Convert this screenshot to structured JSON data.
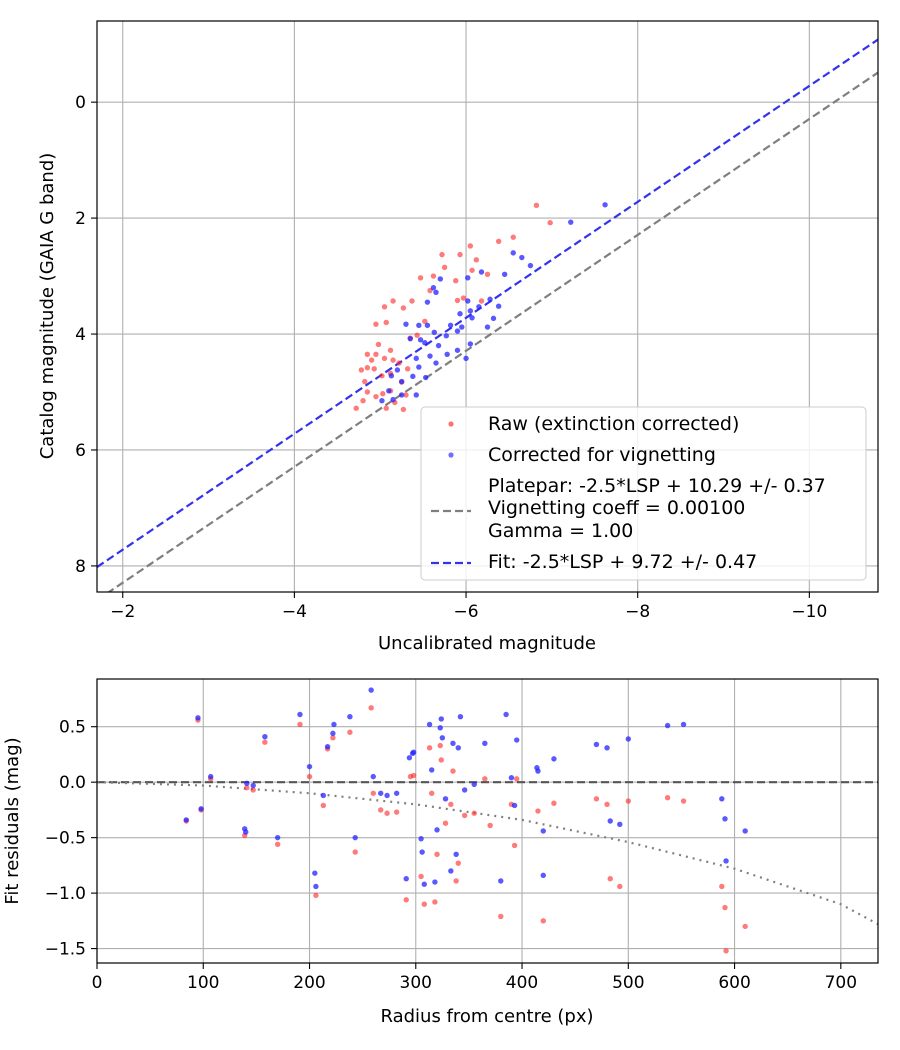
{
  "chart_data": [
    {
      "type": "scatter",
      "xlabel": "Uncalibrated magnitude",
      "ylabel": "Catalog magnitude (GAIA G band)",
      "xlim": [
        -1.7,
        -10.8
      ],
      "ylim": [
        8.45,
        -1.4
      ],
      "xticks": [
        -2,
        -4,
        -6,
        -8,
        -10
      ],
      "xtick_labels": [
        "−2",
        "−4",
        "−6",
        "−8",
        "−10"
      ],
      "yticks": [
        0,
        2,
        4,
        6,
        8
      ],
      "ytick_labels": [
        "0",
        "2",
        "4",
        "6",
        "8"
      ],
      "grid": true,
      "legend_position": "lower-right",
      "legend": {
        "raw": "Raw (extinction corrected)",
        "corrected": "Corrected for vignetting",
        "platepar": [
          "Platepar: -2.5*LSP + 10.29 +/- 0.37",
          "Vignetting coeff = 0.00100",
          "Gamma = 1.00"
        ],
        "fit": "Fit: -2.5*LSP + 9.72 +/- 0.47"
      },
      "lines": [
        {
          "name": "platepar",
          "slope": 1.0,
          "intercept": 10.29,
          "color": "#7f7f7f",
          "style": "dashed"
        },
        {
          "name": "fit",
          "slope": 1.0,
          "intercept": 9.72,
          "color": "#3333ee",
          "style": "dashed"
        }
      ],
      "series": [
        {
          "name": "Raw (extinction corrected)",
          "color": "#ff2222",
          "points": [
            [
              -6.82,
              1.78
            ],
            [
              -6.98,
              2.08
            ],
            [
              -6.55,
              2.33
            ],
            [
              -6.38,
              2.4
            ],
            [
              -6.05,
              2.48
            ],
            [
              -5.72,
              2.63
            ],
            [
              -5.93,
              2.63
            ],
            [
              -6.12,
              2.72
            ],
            [
              -5.75,
              2.85
            ],
            [
              -6.07,
              2.9
            ],
            [
              -6.25,
              2.97
            ],
            [
              -5.62,
              3.0
            ],
            [
              -5.47,
              3.03
            ],
            [
              -5.88,
              3.08
            ],
            [
              -5.58,
              3.25
            ],
            [
              -5.97,
              3.38
            ],
            [
              -5.9,
              3.42
            ],
            [
              -6.18,
              3.43
            ],
            [
              -5.37,
              3.43
            ],
            [
              -5.15,
              3.43
            ],
            [
              -5.05,
              3.53
            ],
            [
              -5.27,
              3.55
            ],
            [
              -5.52,
              3.78
            ],
            [
              -5.07,
              3.8
            ],
            [
              -4.95,
              3.83
            ],
            [
              -5.43,
              4.02
            ],
            [
              -5.35,
              4.07
            ],
            [
              -4.98,
              4.18
            ],
            [
              -5.12,
              4.28
            ],
            [
              -4.85,
              4.35
            ],
            [
              -4.95,
              4.35
            ],
            [
              -5.05,
              4.42
            ],
            [
              -5.15,
              4.45
            ],
            [
              -4.9,
              4.45
            ],
            [
              -5.22,
              4.5
            ],
            [
              -4.85,
              4.58
            ],
            [
              -4.93,
              4.6
            ],
            [
              -5.32,
              4.6
            ],
            [
              -4.78,
              4.62
            ],
            [
              -5.12,
              4.68
            ],
            [
              -5.02,
              4.72
            ],
            [
              -4.82,
              4.82
            ],
            [
              -5.25,
              4.83
            ],
            [
              -5.12,
              4.98
            ],
            [
              -4.85,
              5.0
            ],
            [
              -5.03,
              5.03
            ],
            [
              -5.3,
              5.05
            ],
            [
              -4.95,
              5.08
            ],
            [
              -4.8,
              5.15
            ],
            [
              -5.17,
              5.18
            ],
            [
              -4.72,
              5.28
            ],
            [
              -5.07,
              5.28
            ],
            [
              -5.27,
              5.3
            ]
          ]
        },
        {
          "name": "Corrected for vignetting",
          "color": "#2222ff",
          "points": [
            [
              -7.62,
              1.77
            ],
            [
              -7.22,
              2.07
            ],
            [
              -6.55,
              2.6
            ],
            [
              -6.65,
              2.68
            ],
            [
              -6.75,
              2.82
            ],
            [
              -6.18,
              2.93
            ],
            [
              -6.45,
              2.97
            ],
            [
              -6.02,
              3.03
            ],
            [
              -5.7,
              3.05
            ],
            [
              -6.28,
              3.4
            ],
            [
              -6.02,
              3.43
            ],
            [
              -5.62,
              3.2
            ],
            [
              -5.65,
              3.28
            ],
            [
              -5.55,
              3.45
            ],
            [
              -6.38,
              3.52
            ],
            [
              -6.15,
              3.53
            ],
            [
              -6.05,
              3.6
            ],
            [
              -5.93,
              3.65
            ],
            [
              -6.07,
              3.72
            ],
            [
              -6.32,
              3.73
            ],
            [
              -6.25,
              3.88
            ],
            [
              -5.82,
              3.85
            ],
            [
              -5.95,
              3.88
            ],
            [
              -5.3,
              3.83
            ],
            [
              -5.45,
              3.85
            ],
            [
              -5.55,
              3.85
            ],
            [
              -5.9,
              3.95
            ],
            [
              -5.63,
              3.97
            ],
            [
              -5.77,
              4.03
            ],
            [
              -5.35,
              4.08
            ],
            [
              -5.47,
              4.1
            ],
            [
              -5.52,
              4.15
            ],
            [
              -6.05,
              4.17
            ],
            [
              -5.68,
              4.2
            ],
            [
              -5.9,
              4.28
            ],
            [
              -5.78,
              4.35
            ],
            [
              -5.58,
              4.38
            ],
            [
              -5.42,
              4.42
            ],
            [
              -6.0,
              4.42
            ],
            [
              -5.65,
              4.5
            ],
            [
              -5.45,
              4.57
            ],
            [
              -5.2,
              4.62
            ],
            [
              -5.13,
              4.72
            ],
            [
              -5.38,
              4.73
            ],
            [
              -5.53,
              4.75
            ],
            [
              -5.25,
              4.82
            ],
            [
              -5.1,
              4.98
            ],
            [
              -5.25,
              5.05
            ],
            [
              -5.42,
              5.05
            ],
            [
              -5.15,
              5.13
            ],
            [
              -5.02,
              5.15
            ]
          ]
        }
      ]
    },
    {
      "type": "scatter",
      "xlabel": "Radius from centre (px)",
      "ylabel": "Fit residuals (mag)",
      "xlim": [
        0,
        735
      ],
      "ylim": [
        -1.63,
        0.93
      ],
      "xticks": [
        0,
        100,
        200,
        300,
        400,
        500,
        600,
        700
      ],
      "xtick_labels": [
        "0",
        "100",
        "200",
        "300",
        "400",
        "500",
        "600",
        "700"
      ],
      "yticks": [
        0.5,
        0.0,
        -0.5,
        -1.0,
        -1.5
      ],
      "ytick_labels": [
        "0.5",
        "0.0",
        "−0.5",
        "−1.0",
        "−1.5"
      ],
      "grid": true,
      "lines": [
        {
          "name": "zero-line",
          "color": "#555555",
          "style": "dashed",
          "x": [
            0,
            735
          ],
          "y": [
            0,
            0
          ]
        },
        {
          "name": "vignetting-curve",
          "color": "#808080",
          "style": "dotted",
          "x": [
            0,
            100,
            200,
            300,
            400,
            500,
            600,
            700,
            735
          ],
          "y": [
            0.0,
            -0.03,
            -0.1,
            -0.2,
            -0.34,
            -0.54,
            -0.78,
            -1.1,
            -1.28
          ]
        }
      ],
      "series": [
        {
          "name": "Raw (extinction corrected)",
          "color": "#ff2222",
          "points": [
            [
              84,
              -0.35
            ],
            [
              95,
              0.56
            ],
            [
              98,
              -0.25
            ],
            [
              107,
              0.03
            ],
            [
              139,
              -0.48
            ],
            [
              141,
              -0.05
            ],
            [
              147,
              -0.07
            ],
            [
              158,
              0.36
            ],
            [
              170,
              -0.56
            ],
            [
              191,
              0.52
            ],
            [
              200,
              0.05
            ],
            [
              206,
              -1.02
            ],
            [
              213,
              -0.21
            ],
            [
              217,
              0.3
            ],
            [
              222,
              0.4
            ],
            [
              238,
              0.45
            ],
            [
              243,
              -0.63
            ],
            [
              258,
              0.67
            ],
            [
              260,
              -0.1
            ],
            [
              267,
              -0.25
            ],
            [
              273,
              -0.28
            ],
            [
              282,
              -0.27
            ],
            [
              291,
              -1.06
            ],
            [
              295,
              0.05
            ],
            [
              298,
              0.06
            ],
            [
              305,
              -0.85
            ],
            [
              308,
              -1.1
            ],
            [
              313,
              0.31
            ],
            [
              315,
              -0.1
            ],
            [
              318,
              -1.08
            ],
            [
              320,
              -0.65
            ],
            [
              323,
              0.33
            ],
            [
              324,
              0.2
            ],
            [
              328,
              -0.37
            ],
            [
              333,
              -0.2
            ],
            [
              335,
              0.1
            ],
            [
              338,
              -0.89
            ],
            [
              340,
              -0.73
            ],
            [
              346,
              -0.3
            ],
            [
              355,
              -0.28
            ],
            [
              365,
              0.03
            ],
            [
              370,
              -0.39
            ],
            [
              380,
              -1.21
            ],
            [
              390,
              -0.2
            ],
            [
              393,
              -0.57
            ],
            [
              395,
              0.03
            ],
            [
              415,
              -0.26
            ],
            [
              420,
              -1.25
            ],
            [
              430,
              -0.19
            ],
            [
              470,
              -0.15
            ],
            [
              480,
              -0.2
            ],
            [
              483,
              -0.87
            ],
            [
              492,
              -0.94
            ],
            [
              500,
              -0.17
            ],
            [
              537,
              -0.14
            ],
            [
              552,
              -0.17
            ],
            [
              588,
              -0.94
            ],
            [
              591,
              -1.13
            ],
            [
              592,
              -1.52
            ],
            [
              610,
              -1.3
            ]
          ]
        },
        {
          "name": "Corrected for vignetting",
          "color": "#2222ff",
          "points": [
            [
              84,
              -0.34
            ],
            [
              95,
              0.58
            ],
            [
              98,
              -0.24
            ],
            [
              107,
              0.05
            ],
            [
              139,
              -0.42
            ],
            [
              140,
              -0.45
            ],
            [
              141,
              -0.01
            ],
            [
              147,
              -0.03
            ],
            [
              158,
              0.41
            ],
            [
              170,
              -0.5
            ],
            [
              191,
              0.61
            ],
            [
              200,
              0.14
            ],
            [
              205,
              -0.82
            ],
            [
              206,
              -0.94
            ],
            [
              213,
              -0.12
            ],
            [
              217,
              0.32
            ],
            [
              222,
              0.44
            ],
            [
              223,
              0.52
            ],
            [
              238,
              0.59
            ],
            [
              243,
              -0.5
            ],
            [
              258,
              0.83
            ],
            [
              260,
              0.05
            ],
            [
              267,
              -0.1
            ],
            [
              273,
              -0.12
            ],
            [
              282,
              -0.1
            ],
            [
              291,
              -0.87
            ],
            [
              294,
              0.22
            ],
            [
              297,
              0.26
            ],
            [
              298,
              0.27
            ],
            [
              305,
              -0.51
            ],
            [
              306,
              -0.63
            ],
            [
              308,
              -0.92
            ],
            [
              313,
              0.52
            ],
            [
              315,
              0.11
            ],
            [
              318,
              -0.9
            ],
            [
              320,
              -0.43
            ],
            [
              323,
              0.49
            ],
            [
              324,
              0.57
            ],
            [
              325,
              0.4
            ],
            [
              328,
              -0.15
            ],
            [
              333,
              -0.8
            ],
            [
              335,
              0.35
            ],
            [
              338,
              -0.65
            ],
            [
              340,
              0.31
            ],
            [
              342,
              0.59
            ],
            [
              346,
              -0.07
            ],
            [
              355,
              -0.02
            ],
            [
              365,
              0.35
            ],
            [
              380,
              -0.89
            ],
            [
              385,
              0.61
            ],
            [
              390,
              0.04
            ],
            [
              393,
              -0.21
            ],
            [
              395,
              0.38
            ],
            [
              414,
              0.13
            ],
            [
              415,
              0.1
            ],
            [
              420,
              -0.44
            ],
            [
              420,
              -0.84
            ],
            [
              430,
              0.21
            ],
            [
              470,
              0.34
            ],
            [
              480,
              0.31
            ],
            [
              483,
              -0.35
            ],
            [
              492,
              -0.38
            ],
            [
              500,
              0.39
            ],
            [
              537,
              0.51
            ],
            [
              552,
              0.52
            ],
            [
              588,
              -0.15
            ],
            [
              591,
              -0.33
            ],
            [
              592,
              -0.71
            ],
            [
              610,
              -0.44
            ]
          ]
        }
      ]
    }
  ]
}
